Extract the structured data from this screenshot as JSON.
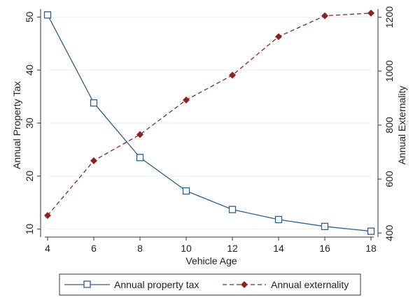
{
  "chart_data": {
    "type": "line",
    "title": "",
    "xlabel": "Vehicle Age",
    "ylabel_left": "Annual Property Tax",
    "ylabel_right": "Annual Externality",
    "x": [
      4,
      6,
      8,
      10,
      12,
      14,
      16,
      18
    ],
    "x_ticks": [
      4,
      6,
      8,
      10,
      12,
      14,
      16,
      18
    ],
    "xlim": [
      4,
      18
    ],
    "y_left_ticks": [
      10,
      20,
      30,
      40,
      50
    ],
    "ylim_left": [
      8.5,
      51.5
    ],
    "y_right_ticks": [
      400,
      600,
      800,
      1000,
      1200
    ],
    "ylim_right": [
      385,
      1230
    ],
    "grid": true,
    "legend_position": "bottom",
    "series": [
      {
        "name": "Annual property tax",
        "axis": "left",
        "marker": "hollow-square",
        "line_style": "solid",
        "color": "#2b5f8c",
        "values": [
          50.4,
          33.8,
          23.5,
          17.2,
          13.7,
          11.8,
          10.5,
          9.6
        ]
      },
      {
        "name": "Annual externality",
        "axis": "right",
        "marker": "filled-diamond",
        "line_style": "dashed",
        "color": "#8b2323",
        "values": [
          465,
          668,
          765,
          893,
          985,
          1128,
          1205,
          1215
        ]
      }
    ]
  }
}
